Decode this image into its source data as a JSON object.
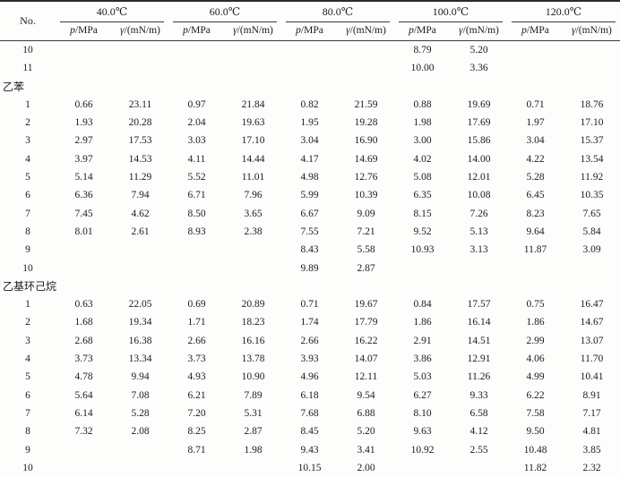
{
  "table": {
    "no_header": "No.",
    "temp_groups": [
      "40.0℃",
      "60.0℃",
      "80.0℃",
      "100.0℃",
      "120.0℃"
    ],
    "sub_header": {
      "pressure_symbol": "p",
      "pressure_rest": "/MPa",
      "tension_symbol": "γ",
      "tension_rest": "/(mN/m)"
    },
    "rows": [
      {
        "type": "data",
        "no": "10",
        "values": [
          "",
          "",
          "",
          "",
          "",
          "",
          "8.79",
          "5.20",
          "",
          ""
        ]
      },
      {
        "type": "data",
        "no": "11",
        "values": [
          "",
          "",
          "",
          "",
          "",
          "",
          "10.00",
          "3.36",
          "",
          ""
        ]
      },
      {
        "type": "section",
        "label": "乙苯"
      },
      {
        "type": "data",
        "no": "1",
        "values": [
          "0.66",
          "23.11",
          "0.97",
          "21.84",
          "0.82",
          "21.59",
          "0.88",
          "19.69",
          "0.71",
          "18.76"
        ]
      },
      {
        "type": "data",
        "no": "2",
        "values": [
          "1.93",
          "20.28",
          "2.04",
          "19.63",
          "1.95",
          "19.28",
          "1.98",
          "17.69",
          "1.97",
          "17.10"
        ]
      },
      {
        "type": "data",
        "no": "3",
        "values": [
          "2.97",
          "17.53",
          "3.03",
          "17.10",
          "3.04",
          "16.90",
          "3.00",
          "15.86",
          "3.04",
          "15.37"
        ]
      },
      {
        "type": "data",
        "no": "4",
        "values": [
          "3.97",
          "14.53",
          "4.11",
          "14.44",
          "4.17",
          "14.69",
          "4.02",
          "14.00",
          "4.22",
          "13.54"
        ]
      },
      {
        "type": "data",
        "no": "5",
        "values": [
          "5.14",
          "11.29",
          "5.52",
          "11.01",
          "4.98",
          "12.76",
          "5.08",
          "12.01",
          "5.28",
          "11.92"
        ]
      },
      {
        "type": "data",
        "no": "6",
        "values": [
          "6.36",
          "7.94",
          "6.71",
          "7.96",
          "5.99",
          "10.39",
          "6.35",
          "10.08",
          "6.45",
          "10.35"
        ]
      },
      {
        "type": "data",
        "no": "7",
        "values": [
          "7.45",
          "4.62",
          "8.50",
          "3.65",
          "6.67",
          "9.09",
          "8.15",
          "7.26",
          "8.23",
          "7.65"
        ]
      },
      {
        "type": "data",
        "no": "8",
        "values": [
          "8.01",
          "2.61",
          "8.93",
          "2.38",
          "7.55",
          "7.21",
          "9.52",
          "5.13",
          "9.64",
          "5.84"
        ]
      },
      {
        "type": "data",
        "no": "9",
        "values": [
          "",
          "",
          "",
          "",
          "8.43",
          "5.58",
          "10.93",
          "3.13",
          "11.87",
          "3.09"
        ]
      },
      {
        "type": "data",
        "no": "10",
        "values": [
          "",
          "",
          "",
          "",
          "9.89",
          "2.87",
          "",
          "",
          "",
          ""
        ]
      },
      {
        "type": "section",
        "label": "乙基环己烷"
      },
      {
        "type": "data",
        "no": "1",
        "values": [
          "0.63",
          "22.05",
          "0.69",
          "20.89",
          "0.71",
          "19.67",
          "0.84",
          "17.57",
          "0.75",
          "16.47"
        ]
      },
      {
        "type": "data",
        "no": "2",
        "values": [
          "1.68",
          "19.34",
          "1.71",
          "18.23",
          "1.74",
          "17.79",
          "1.86",
          "16.14",
          "1.86",
          "14.67"
        ]
      },
      {
        "type": "data",
        "no": "3",
        "values": [
          "2.68",
          "16.38",
          "2.66",
          "16.16",
          "2.66",
          "16.22",
          "2.91",
          "14.51",
          "2.99",
          "13.07"
        ]
      },
      {
        "type": "data",
        "no": "4",
        "values": [
          "3.73",
          "13.34",
          "3.73",
          "13.78",
          "3.93",
          "14.07",
          "3.86",
          "12.91",
          "4.06",
          "11.70"
        ]
      },
      {
        "type": "data",
        "no": "5",
        "values": [
          "4.78",
          "9.94",
          "4.93",
          "10.90",
          "4.96",
          "12.11",
          "5.03",
          "11.26",
          "4.99",
          "10.41"
        ]
      },
      {
        "type": "data",
        "no": "6",
        "values": [
          "5.64",
          "7.08",
          "6.21",
          "7.89",
          "6.18",
          "9.54",
          "6.27",
          "9.33",
          "6.22",
          "8.91"
        ]
      },
      {
        "type": "data",
        "no": "7",
        "values": [
          "6.14",
          "5.28",
          "7.20",
          "5.31",
          "7.68",
          "6.88",
          "8.10",
          "6.58",
          "7.58",
          "7.17"
        ]
      },
      {
        "type": "data",
        "no": "8",
        "values": [
          "7.32",
          "2.08",
          "8.25",
          "2.87",
          "8.45",
          "5.20",
          "9.63",
          "4.12",
          "9.50",
          "4.81"
        ]
      },
      {
        "type": "data",
        "no": "9",
        "values": [
          "",
          "",
          "8.71",
          "1.98",
          "9.43",
          "3.41",
          "10.92",
          "2.55",
          "10.48",
          "3.85"
        ]
      },
      {
        "type": "data",
        "no": "10",
        "values": [
          "",
          "",
          "",
          "",
          "10.15",
          "2.00",
          "",
          "",
          "11.82",
          "2.32"
        ]
      }
    ]
  }
}
